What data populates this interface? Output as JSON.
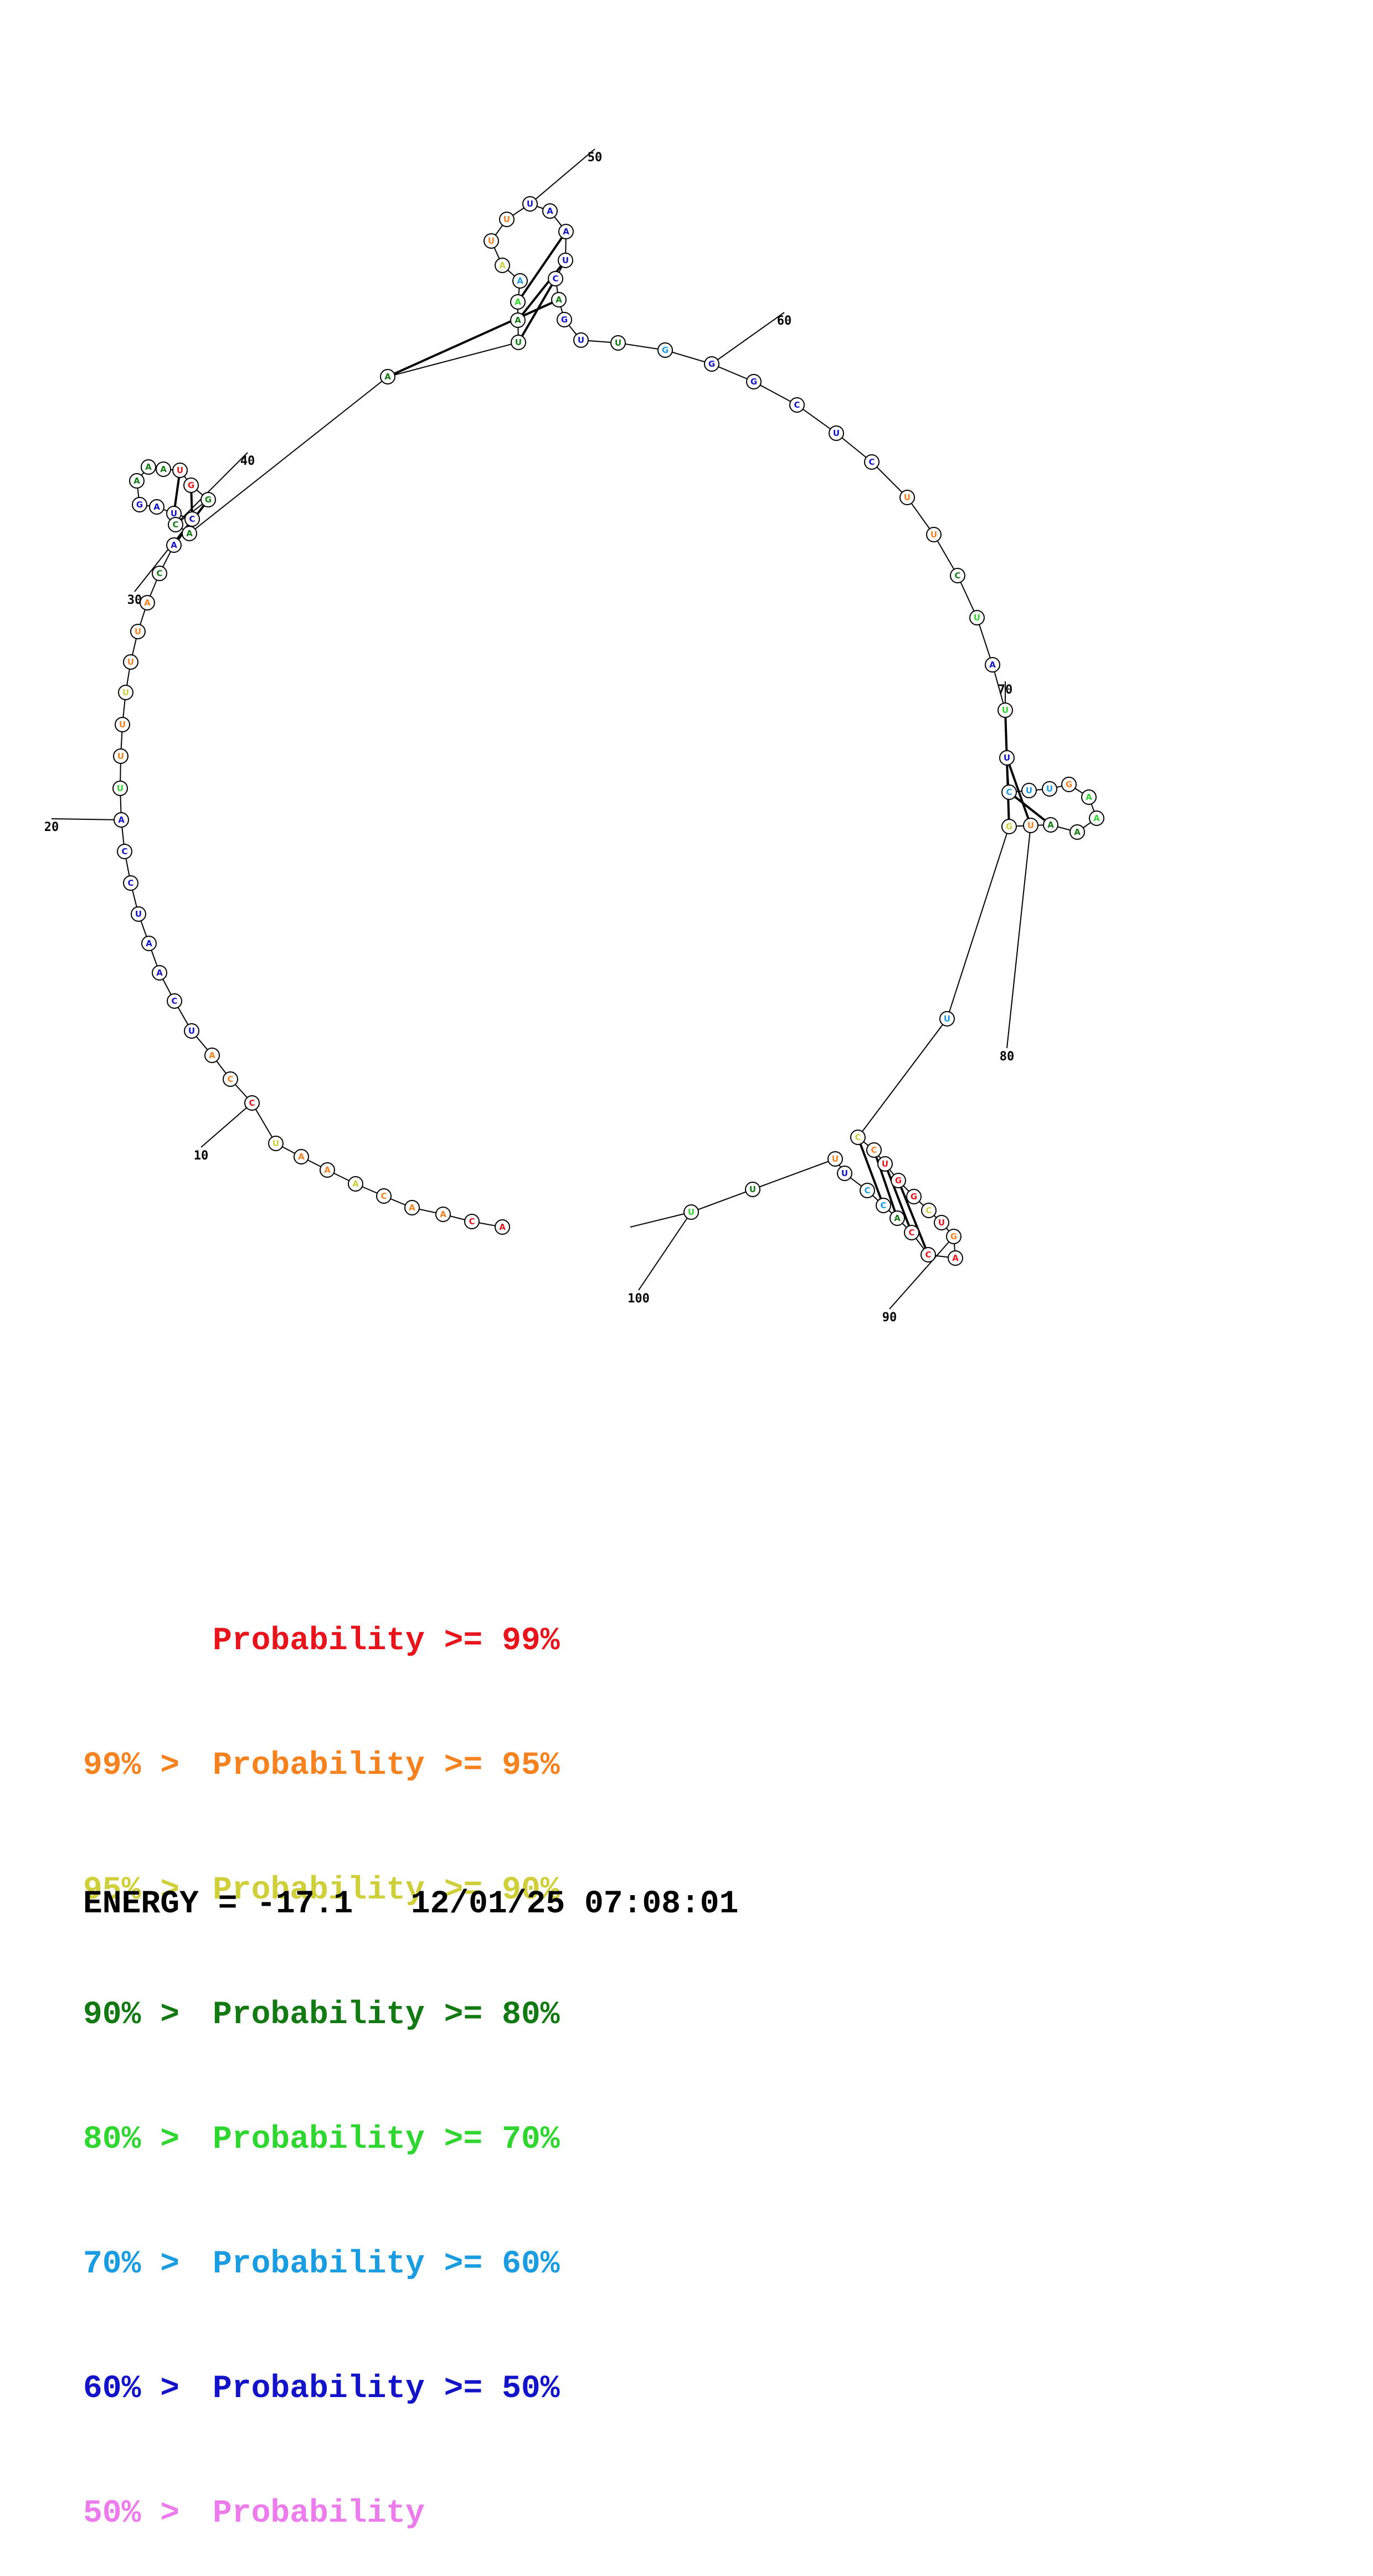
{
  "colors": {
    "c99": "#e8141c",
    "c95": "#f5821f",
    "c90": "#cfcf3a",
    "c80": "#137a13",
    "c70": "#2fd62f",
    "c60": "#199ce0",
    "c50": "#1313c8",
    "c0": "#ec7cec"
  },
  "legend": [
    {
      "prefix": "",
      "label": "Probability >= 99%",
      "color": "#e8141c"
    },
    {
      "prefix": "99% > ",
      "label": "Probability >= 95%",
      "color": "#f5821f"
    },
    {
      "prefix": "95% > ",
      "label": "Probability >= 90%",
      "color": "#cfcf3a"
    },
    {
      "prefix": "90% > ",
      "label": "Probability >= 80%",
      "color": "#137a13"
    },
    {
      "prefix": "80% > ",
      "label": "Probability >= 70%",
      "color": "#2fd62f"
    },
    {
      "prefix": "70% > ",
      "label": "Probability >= 60%",
      "color": "#199ce0"
    },
    {
      "prefix": "60% > ",
      "label": "Probability >= 50%",
      "color": "#1313c8"
    },
    {
      "prefix": "50% > ",
      "label": "Probability",
      "color": "#ec7cec"
    }
  ],
  "footer": {
    "energy": "ENERGY = -17.1",
    "timestamp": "12/01/25 07:08:01"
  },
  "position_labels": [
    "10",
    "20",
    "30",
    "40",
    "50",
    "60",
    "70",
    "80",
    "90",
    "100"
  ],
  "sequence": [
    "A",
    "C",
    "A",
    "A",
    "C",
    "A",
    "A",
    "A",
    "U",
    "C",
    "C",
    "A",
    "U",
    "C",
    "A",
    "A",
    "U",
    "C",
    "C",
    "A",
    "U",
    "U",
    "U",
    "U",
    "U",
    "U",
    "A",
    "C",
    "A",
    "C",
    "U",
    "A",
    "G",
    "A",
    "A",
    "A",
    "U",
    "G",
    "G",
    "C",
    "A",
    "A",
    "U",
    "A",
    "A",
    "A",
    "A",
    "U",
    "U",
    "U",
    "A",
    "A",
    "U",
    "C",
    "A",
    "G",
    "U",
    "U",
    "G",
    "G",
    "G",
    "C",
    "U",
    "C",
    "U",
    "U",
    "C",
    "U",
    "A",
    "U",
    "U",
    "C",
    "U",
    "U",
    "G",
    "A",
    "A",
    "A",
    "A",
    "U",
    "G",
    "U",
    "C",
    "C",
    "U",
    "G",
    "G",
    "C",
    "U",
    "G",
    "A",
    "C",
    "C",
    "A",
    "C",
    "C",
    "U",
    "U",
    "U",
    "U"
  ],
  "tiers": [
    "99",
    "99",
    "95",
    "95",
    "95",
    "90",
    "95",
    "95",
    "90",
    "99",
    "95",
    "95",
    "50",
    "50",
    "50",
    "50",
    "50",
    "50",
    "50",
    "50",
    "70",
    "95",
    "95",
    "90",
    "95",
    "95",
    "95",
    "80",
    "50",
    "50",
    "50",
    "50",
    "50",
    "80",
    "80",
    "80",
    "99",
    "99",
    "80",
    "80",
    "80",
    "80",
    "80",
    "80",
    "70",
    "60",
    "90",
    "95",
    "95",
    "50",
    "50",
    "50",
    "50",
    "50",
    "80",
    "50",
    "50",
    "80",
    "60",
    "50",
    "50",
    "50",
    "50",
    "50",
    "95",
    "95",
    "80",
    "70",
    "50",
    "70",
    "50",
    "60",
    "60",
    "60",
    "95",
    "70",
    "70",
    "80",
    "80",
    "95",
    "90",
    "60",
    "90",
    "95",
    "99",
    "99",
    "99",
    "90",
    "99",
    "95",
    "99",
    "99",
    "99",
    "80",
    "60",
    "60",
    "50",
    "95",
    "80",
    "70"
  ],
  "pairs": [
    {
      "i": 29,
      "j": 39
    },
    {
      "i": 30,
      "j": 38
    },
    {
      "i": 31,
      "j": 37
    },
    {
      "i": 42,
      "j": 55
    },
    {
      "i": 43,
      "j": 54
    },
    {
      "i": 44,
      "j": 53
    },
    {
      "i": 45,
      "j": 52
    },
    {
      "i": 70,
      "j": 81
    },
    {
      "i": 71,
      "j": 80
    },
    {
      "i": 72,
      "j": 79
    },
    {
      "i": 83,
      "j": 95
    },
    {
      "i": 84,
      "j": 94
    },
    {
      "i": 85,
      "j": 93
    },
    {
      "i": 86,
      "j": 92
    }
  ]
}
